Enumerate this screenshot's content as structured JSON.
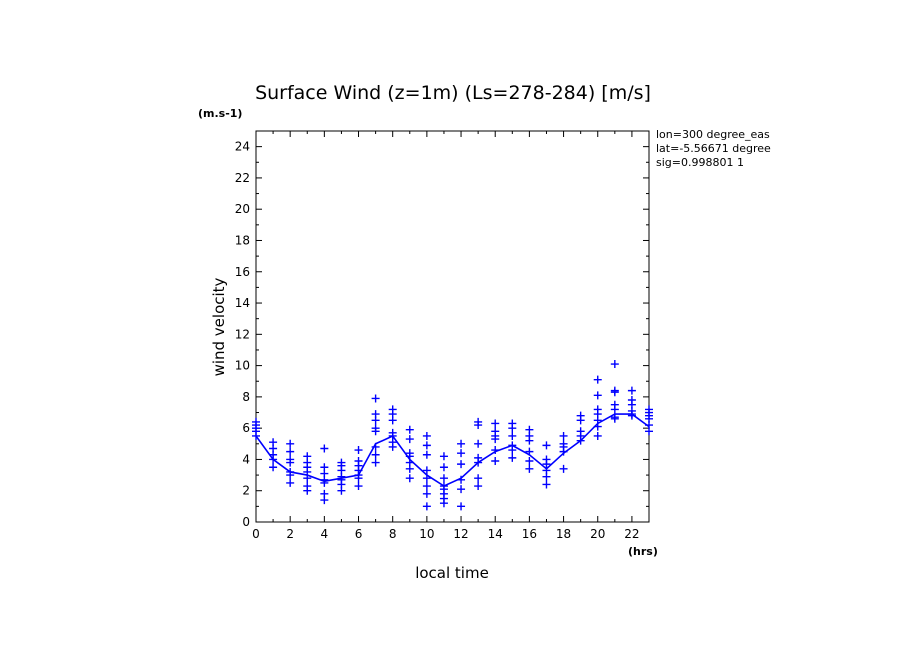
{
  "chart_data": {
    "type": "scatter",
    "title": "Surface Wind (z=1m) (Ls=278-284) [m/s]",
    "ylabel": "wind velocity",
    "xlabel": "local time",
    "y_unit": "(m.s-1)",
    "x_unit": "(hrs)",
    "xlim": [
      0,
      23
    ],
    "ylim": [
      0,
      25
    ],
    "x_ticks": [
      0,
      2,
      4,
      6,
      8,
      10,
      12,
      14,
      16,
      18,
      20,
      22
    ],
    "y_ticks": [
      0,
      2,
      4,
      6,
      8,
      10,
      12,
      14,
      16,
      18,
      20,
      22,
      24
    ],
    "info_lines": [
      "lon=300 degree_eas",
      "lat=-5.56671 degree",
      "sig=0.998801 1"
    ],
    "color": "#0000ff",
    "mean_line": {
      "name": "mean",
      "x": [
        0,
        1,
        2,
        3,
        4,
        5,
        6,
        7,
        8,
        9,
        10,
        11,
        12,
        13,
        14,
        15,
        16,
        17,
        18,
        19,
        20,
        21,
        22,
        23
      ],
      "y": [
        5.5,
        4.0,
        3.2,
        3.0,
        2.6,
        2.8,
        3.0,
        5.0,
        5.5,
        4.0,
        3.0,
        2.3,
        2.8,
        3.8,
        4.5,
        4.9,
        4.3,
        3.4,
        4.4,
        5.2,
        6.3,
        6.9,
        6.9,
        6.1
      ]
    },
    "scatter_series": [
      {
        "x": 0,
        "y": [
          6.4,
          6.2,
          6.0,
          5.8,
          5.5
        ]
      },
      {
        "x": 1,
        "y": [
          5.1,
          4.7,
          4.3,
          4.0,
          3.5
        ]
      },
      {
        "x": 2,
        "y": [
          5.0,
          4.5,
          4.0,
          3.8,
          3.2,
          3.0,
          2.5
        ]
      },
      {
        "x": 3,
        "y": [
          4.2,
          3.8,
          3.5,
          3.2,
          2.8,
          2.3,
          2.0
        ]
      },
      {
        "x": 4,
        "y": [
          4.7,
          3.5,
          3.1,
          2.7,
          2.5,
          1.8,
          1.4
        ]
      },
      {
        "x": 5,
        "y": [
          3.8,
          3.6,
          3.3,
          2.9,
          2.7,
          2.4,
          2.0
        ]
      },
      {
        "x": 6,
        "y": [
          4.6,
          3.9,
          3.6,
          3.3,
          3.0,
          2.8,
          2.3
        ]
      },
      {
        "x": 7,
        "y": [
          7.9,
          6.9,
          6.5,
          6.0,
          5.8,
          4.8,
          4.3,
          3.8
        ]
      },
      {
        "x": 8,
        "y": [
          7.2,
          6.9,
          6.5,
          5.7,
          5.5,
          5.1,
          4.8
        ]
      },
      {
        "x": 9,
        "y": [
          5.9,
          5.3,
          4.4,
          4.2,
          3.8,
          3.4,
          2.8
        ]
      },
      {
        "x": 10,
        "y": [
          5.5,
          4.9,
          4.3,
          3.3,
          2.8,
          2.3,
          1.8,
          1.0
        ]
      },
      {
        "x": 11,
        "y": [
          4.2,
          3.5,
          2.8,
          2.3,
          2.1,
          1.8,
          1.5,
          1.2
        ]
      },
      {
        "x": 12,
        "y": [
          5.0,
          4.4,
          3.7,
          2.7,
          2.1,
          1.0
        ]
      },
      {
        "x": 13,
        "y": [
          6.4,
          6.2,
          5.0,
          4.1,
          3.8,
          2.8,
          2.3
        ]
      },
      {
        "x": 14,
        "y": [
          6.3,
          5.8,
          5.5,
          5.3,
          4.6,
          3.9
        ]
      },
      {
        "x": 15,
        "y": [
          6.3,
          6.0,
          5.5,
          4.9,
          4.6,
          4.1
        ]
      },
      {
        "x": 16,
        "y": [
          5.9,
          5.5,
          5.2,
          4.5,
          3.9,
          3.4
        ]
      },
      {
        "x": 17,
        "y": [
          4.9,
          4.0,
          3.7,
          3.3,
          2.9,
          2.4
        ]
      },
      {
        "x": 18,
        "y": [
          5.5,
          5.0,
          4.8,
          4.5,
          3.4
        ]
      },
      {
        "x": 19,
        "y": [
          6.8,
          6.5,
          5.8,
          5.5,
          5.2
        ]
      },
      {
        "x": 20,
        "y": [
          9.1,
          8.1,
          7.2,
          6.9,
          6.5,
          6.1,
          5.5
        ]
      },
      {
        "x": 21,
        "y": [
          10.1,
          8.4,
          8.3,
          7.5,
          7.2,
          6.7,
          6.6
        ]
      },
      {
        "x": 22,
        "y": [
          8.4,
          7.8,
          7.5,
          7.1,
          6.8,
          6.9
        ]
      },
      {
        "x": 23,
        "y": [
          7.2,
          7.0,
          6.8,
          6.6,
          6.2,
          5.8
        ]
      }
    ]
  }
}
